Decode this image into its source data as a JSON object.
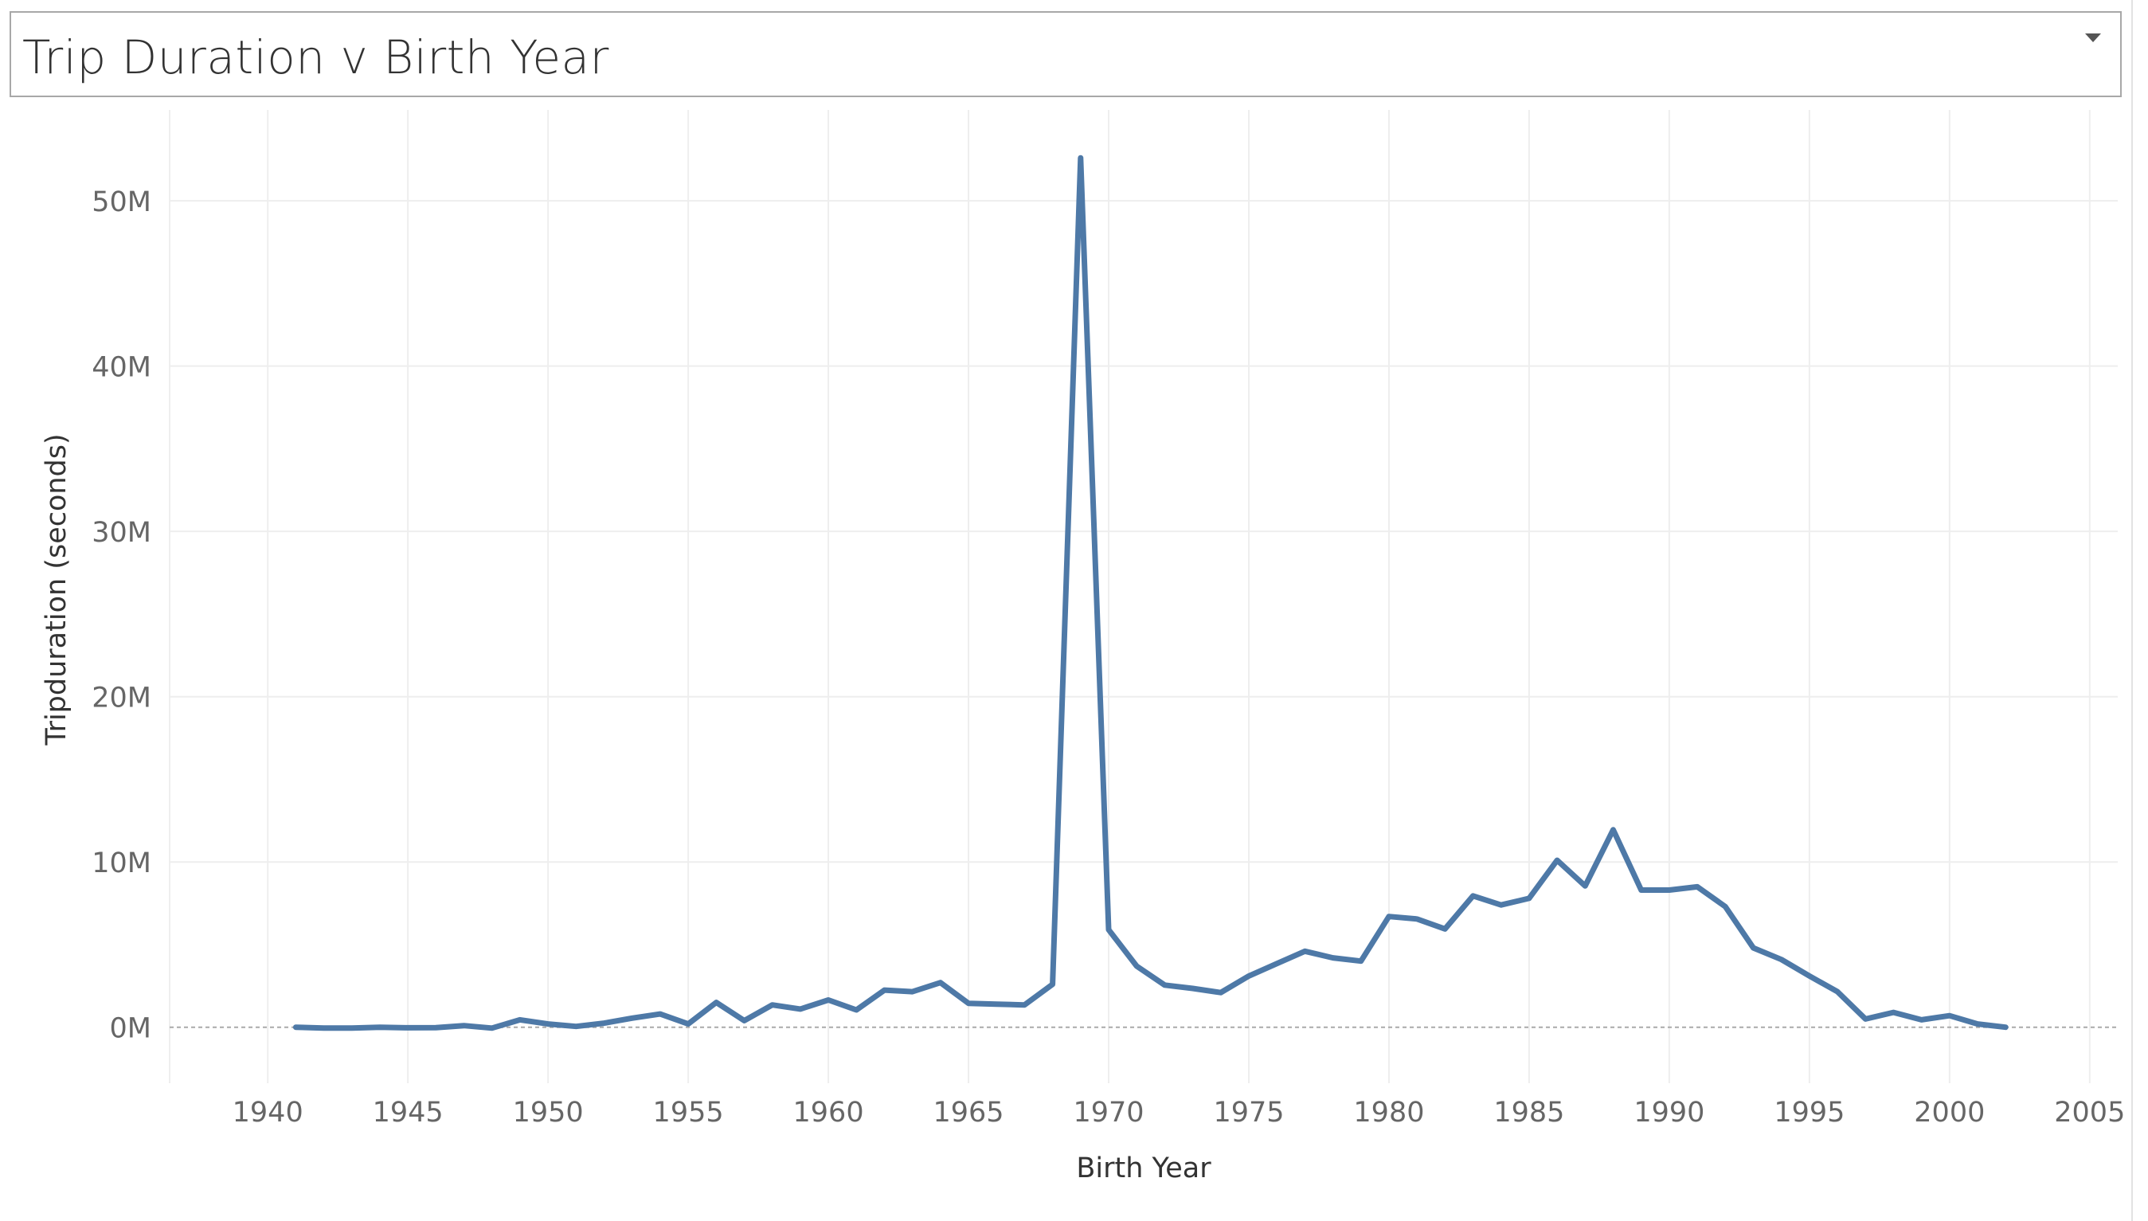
{
  "title": "Trip Duration v Birth Year",
  "colors": {
    "line": "#4E79A7",
    "grid": "#EEEEEE",
    "zero_line": "#AAAAAA",
    "tick_text": "#666666",
    "axis_title": "#333333"
  },
  "icons": {
    "dropdown": "chevron-down-icon"
  },
  "chart_data": {
    "type": "line",
    "title": "",
    "xlabel": "Birth Year",
    "ylabel": "Tripduration (seconds)",
    "xlim": [
      1936.5,
      2006
    ],
    "ylim": [
      -3000000,
      55500000
    ],
    "x_ticks": [
      1940,
      1945,
      1950,
      1955,
      1960,
      1965,
      1970,
      1975,
      1980,
      1985,
      1990,
      1995,
      2000,
      2005
    ],
    "x_tick_labels": [
      "1940",
      "1945",
      "1950",
      "1955",
      "1960",
      "1965",
      "1970",
      "1975",
      "1980",
      "1985",
      "1990",
      "1995",
      "2000",
      "2005"
    ],
    "y_ticks": [
      0,
      10000000,
      20000000,
      30000000,
      40000000,
      50000000
    ],
    "y_tick_labels": [
      "0M",
      "10M",
      "20M",
      "30M",
      "40M",
      "50M"
    ],
    "grid": true,
    "series": [
      {
        "x": [
          1941,
          1942,
          1943,
          1944,
          1945,
          1946,
          1947,
          1948,
          1949,
          1950,
          1951,
          1952,
          1953,
          1954,
          1955,
          1956,
          1957,
          1958,
          1959,
          1960,
          1961,
          1962,
          1963,
          1964,
          1965,
          1966,
          1967,
          1968,
          1969,
          1970,
          1971,
          1972,
          1973,
          1974,
          1975,
          1976,
          1977,
          1978,
          1979,
          1980,
          1981,
          1982,
          1983,
          1984,
          1985,
          1986,
          1987,
          1988,
          1989,
          1990,
          1991,
          1992,
          1993,
          1994,
          1995,
          1996,
          1997,
          1998,
          1999,
          2000,
          2001,
          2002
        ],
        "y": [
          0,
          -50000,
          -50000,
          0,
          -30000,
          -20000,
          100000,
          -50000,
          450000,
          200000,
          50000,
          250000,
          550000,
          800000,
          200000,
          1500000,
          400000,
          1350000,
          1100000,
          1650000,
          1050000,
          2250000,
          2150000,
          2700000,
          1450000,
          1400000,
          1350000,
          2600000,
          52600000,
          5900000,
          3700000,
          2550000,
          2350000,
          2100000,
          3100000,
          3850000,
          4600000,
          4200000,
          4000000,
          6700000,
          6550000,
          5950000,
          7950000,
          7400000,
          7800000,
          10100000,
          8550000,
          11950000,
          8300000,
          8300000,
          8500000,
          7300000,
          4800000,
          4100000,
          3100000,
          2150000,
          500000,
          900000,
          450000,
          700000,
          200000,
          0
        ]
      }
    ]
  }
}
